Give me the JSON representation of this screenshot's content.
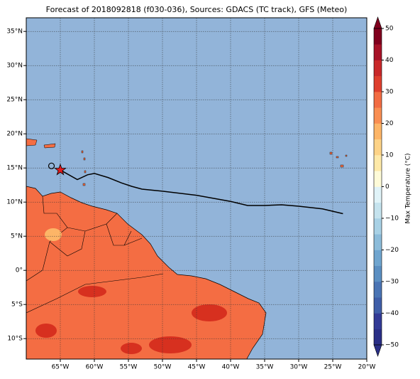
{
  "chart_data": {
    "type": "map",
    "title": "Forecast of 2018092818 (f030-036), Sources: GDACS (TC track), GFS (Meteo)",
    "xlim": [
      -70,
      -20
    ],
    "ylim": [
      -13,
      37
    ],
    "xticks": [
      {
        "value": -65,
        "label": "65°W"
      },
      {
        "value": -60,
        "label": "60°W"
      },
      {
        "value": -55,
        "label": "55°W"
      },
      {
        "value": -50,
        "label": "50°W"
      },
      {
        "value": -45,
        "label": "45°W"
      },
      {
        "value": -40,
        "label": "40°W"
      },
      {
        "value": -35,
        "label": "35°W"
      },
      {
        "value": -30,
        "label": "30°W"
      },
      {
        "value": -25,
        "label": "25°W"
      },
      {
        "value": -20,
        "label": "20°W"
      }
    ],
    "yticks": [
      {
        "value": 35,
        "label": "35°N"
      },
      {
        "value": 30,
        "label": "30°N"
      },
      {
        "value": 25,
        "label": "25°N"
      },
      {
        "value": 20,
        "label": "20°N"
      },
      {
        "value": 15,
        "label": "15°N"
      },
      {
        "value": 10,
        "label": "10°N"
      },
      {
        "value": 5,
        "label": "5°N"
      },
      {
        "value": 0,
        "label": "0°"
      },
      {
        "value": -5,
        "label": "5°S"
      },
      {
        "value": -10,
        "label": "10°S"
      }
    ],
    "grid": true,
    "track": {
      "color": "#000000",
      "lon": [
        -65,
        -62.5,
        -61,
        -60,
        -58,
        -56,
        -54.5,
        -53,
        -50,
        -45,
        -40,
        -37.5,
        -35,
        -32.5,
        -30,
        -26.5,
        -23.5
      ],
      "lat": [
        14.7,
        13.3,
        14,
        14.2,
        13.6,
        12.8,
        12.3,
        11.9,
        11.6,
        11,
        10.1,
        9.5,
        9.5,
        9.6,
        9.4,
        9,
        8.3
      ]
    },
    "past_position": {
      "lon": -66.3,
      "lat": 15.3
    },
    "current_position": {
      "lon": -65,
      "lat": 14.7,
      "color": "#e41a1c"
    },
    "colorbar": {
      "label": "Max Temperature (°C)",
      "clim": [
        -50,
        50
      ],
      "ticks": [
        {
          "value": -50,
          "label": "−50"
        },
        {
          "value": -40,
          "label": "−40"
        },
        {
          "value": -30,
          "label": "−30"
        },
        {
          "value": -20,
          "label": "−20"
        },
        {
          "value": -10,
          "label": "−10"
        },
        0,
        10,
        20,
        30,
        40,
        50
      ],
      "colors": [
        "#2a2f87",
        "#323a96",
        "#3f5ea8",
        "#4a74b4",
        "#5b8fc2",
        "#6fa5cf",
        "#8cbcda",
        "#a8d1e5",
        "#c5e3ee",
        "#e0f3f8",
        "#fefbd8",
        "#fee9a8",
        "#fdd387",
        "#fdb567",
        "#f98e52",
        "#f26c43",
        "#de3f2e",
        "#c9282a",
        "#a71228",
        "#80001e"
      ]
    }
  }
}
